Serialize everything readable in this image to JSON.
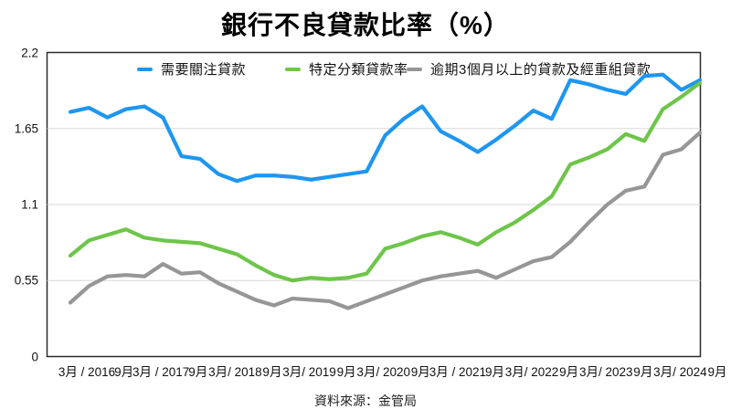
{
  "title": "銀行不良貸款比率（%）",
  "source_note": "資料來源：金管局",
  "legend": [
    {
      "label": "需要關注貸款",
      "color": "#1E96F0"
    },
    {
      "label": "特定分類貸款率",
      "color": "#6EC549"
    },
    {
      "label": "逾期3個月以上的貸款及經重組貸款",
      "color": "#969696"
    }
  ],
  "chart_data": {
    "type": "line",
    "title": "銀行不良貸款比率（%）",
    "x_tick_labels": [
      "3月 / 2016",
      "9月",
      "3月 / 2017",
      "9月",
      "3月/ 2018",
      "9月",
      "3月/ 2019",
      "9月",
      "3月/ 2020",
      "9月",
      "3月 / 2021",
      "9月",
      "3月/ 2022",
      "9月",
      "3月/ 2023",
      "9月",
      "3月/ 2024",
      "9月"
    ],
    "y_tick_labels": [
      "2.2",
      "1.65",
      "1.1",
      "0.55",
      "0"
    ],
    "y_ticks": [
      0,
      0.55,
      1.1,
      1.65,
      2.2
    ],
    "ylim": [
      0,
      2.2
    ],
    "grid": "horizontal",
    "legend_position": "top",
    "series": [
      {
        "name": "需要關注貸款",
        "color": "#1E96F0",
        "values": [
          1.77,
          1.8,
          1.73,
          1.79,
          1.81,
          1.73,
          1.45,
          1.43,
          1.32,
          1.27,
          1.31,
          1.31,
          1.3,
          1.28,
          1.3,
          1.32,
          1.34,
          1.6,
          1.72,
          1.81,
          1.63,
          1.56,
          1.48,
          1.57,
          1.67,
          1.78,
          1.72,
          2.0,
          1.97,
          1.93,
          1.9,
          2.03,
          2.04,
          1.93,
          2.0
        ]
      },
      {
        "name": "特定分類貸款率",
        "color": "#6EC549",
        "values": [
          0.73,
          0.84,
          0.88,
          0.92,
          0.86,
          0.84,
          0.83,
          0.82,
          0.78,
          0.74,
          0.66,
          0.59,
          0.55,
          0.57,
          0.56,
          0.57,
          0.6,
          0.78,
          0.82,
          0.87,
          0.9,
          0.86,
          0.81,
          0.9,
          0.97,
          1.06,
          1.16,
          1.39,
          1.44,
          1.5,
          1.61,
          1.56,
          1.79,
          1.88,
          1.98
        ]
      },
      {
        "name": "逾期3個月以上的貸款及經重組貸款",
        "color": "#969696",
        "values": [
          0.39,
          0.51,
          0.58,
          0.59,
          0.58,
          0.67,
          0.6,
          0.61,
          0.53,
          0.47,
          0.41,
          0.37,
          0.42,
          0.41,
          0.4,
          0.35,
          0.4,
          0.45,
          0.5,
          0.55,
          0.58,
          0.6,
          0.62,
          0.57,
          0.63,
          0.69,
          0.72,
          0.83,
          0.97,
          1.1,
          1.2,
          1.23,
          1.46,
          1.5,
          1.62
        ]
      }
    ]
  }
}
